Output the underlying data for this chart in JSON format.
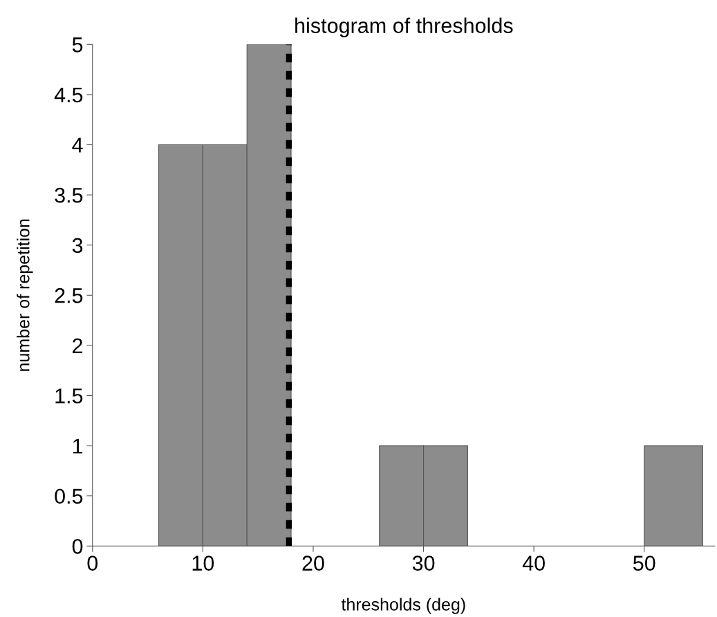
{
  "chart_data": {
    "type": "histogram",
    "title": "histogram of thresholds",
    "xlabel": "thresholds (deg)",
    "ylabel": "number of repetition",
    "bins": [
      6,
      10,
      14,
      18,
      26,
      30,
      34,
      50,
      55.3
    ],
    "values": [
      4,
      4,
      5,
      0,
      1,
      1,
      0,
      1
    ],
    "color": "#8c8c8c",
    "xlim": [
      0,
      56.4
    ],
    "xticks": [
      0,
      10,
      20,
      30,
      40,
      50
    ],
    "ylim": [
      0,
      5
    ],
    "yticks": [
      0,
      0.5,
      1,
      1.5,
      2,
      2.5,
      3,
      3.5,
      4,
      4.5,
      5
    ],
    "ref_lines": [
      {
        "axis": "x",
        "value": 17.8,
        "color": "#000000",
        "line_style": "dashed"
      }
    ],
    "grid": false
  }
}
